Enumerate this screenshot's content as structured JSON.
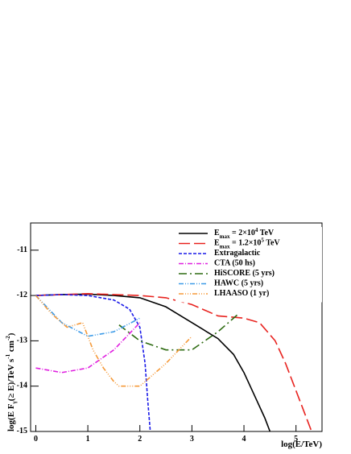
{
  "chart_data": {
    "type": "line",
    "x_label": "log(E/TeV)",
    "y_label": "log(E F_{γ}(≥ E)/TeV s^{-1} cm^{-2})",
    "xlim": [
      -0.1,
      5.5
    ],
    "ylim": [
      -15,
      -10.4
    ],
    "xticks": [
      0,
      1,
      2,
      3,
      4,
      5
    ],
    "yticks": [
      -15,
      -14,
      -13,
      -12,
      -11
    ],
    "legend": "top-right",
    "series": [
      {
        "name": "E_{max} = 2×10^{4} TeV",
        "color": "#000000",
        "dash": "",
        "x": [
          0,
          0.5,
          1,
          1.5,
          2,
          2.5,
          3,
          3.5,
          3.8,
          4,
          4.2,
          4.4,
          4.5
        ],
        "values": [
          -12,
          -11.98,
          -11.97,
          -12.0,
          -12.05,
          -12.25,
          -12.6,
          -12.95,
          -13.3,
          -13.7,
          -14.2,
          -14.7,
          -15
        ]
      },
      {
        "name": "E_{max} = 1.2×10^{5} TeV",
        "color": "#e8231f",
        "dash": "14 5",
        "x": [
          0,
          1,
          2,
          2.5,
          3,
          3.5,
          4,
          4.3,
          4.6,
          4.8,
          5,
          5.2,
          5.3
        ],
        "values": [
          -12,
          -11.96,
          -12.0,
          -12.05,
          -12.2,
          -12.45,
          -12.5,
          -12.6,
          -13.0,
          -13.5,
          -14.1,
          -14.7,
          -15
        ]
      },
      {
        "name": "Extragalactic",
        "color": "#1a1ae8",
        "dash": "4 2",
        "x": [
          0,
          0.5,
          1,
          1.5,
          1.8,
          2.0,
          2.1,
          2.15,
          2.2
        ],
        "values": [
          -12,
          -11.98,
          -12.0,
          -12.1,
          -12.3,
          -12.7,
          -13.5,
          -14.3,
          -15
        ]
      },
      {
        "name": "CTA (50 hs)",
        "color": "#e020e0",
        "dash": "6 2 1 2",
        "x": [
          0,
          0.5,
          1,
          1.5,
          2
        ],
        "values": [
          -13.6,
          -13.7,
          -13.6,
          -13.2,
          -12.6
        ]
      },
      {
        "name": "HiSCORE (5 yrs)",
        "color": "#2e6b12",
        "dash": "10 4 2 4",
        "x": [
          1.6,
          2,
          2.5,
          3,
          3.5,
          3.9
        ],
        "values": [
          -12.65,
          -13.0,
          -13.2,
          -13.2,
          -12.8,
          -12.4
        ]
      },
      {
        "name": "HAWC (5 yrs)",
        "color": "#3d9be8",
        "dash": "6 2 1 2 1 2",
        "x": [
          0,
          0.5,
          1,
          1.5,
          2
        ],
        "values": [
          -12,
          -12.6,
          -12.9,
          -12.8,
          -12.5
        ]
      },
      {
        "name": "LHAASO (1 yr)",
        "color": "#f59a3a",
        "dash": "6 2 1 2 1 2 1 2",
        "x": [
          0,
          0.3,
          0.6,
          0.9,
          1.1,
          1.3,
          1.5,
          1.6,
          2,
          2.5,
          3
        ],
        "values": [
          -12,
          -12.4,
          -12.7,
          -12.6,
          -13.2,
          -13.6,
          -13.9,
          -14.0,
          -14.0,
          -13.5,
          -12.9
        ]
      }
    ]
  }
}
